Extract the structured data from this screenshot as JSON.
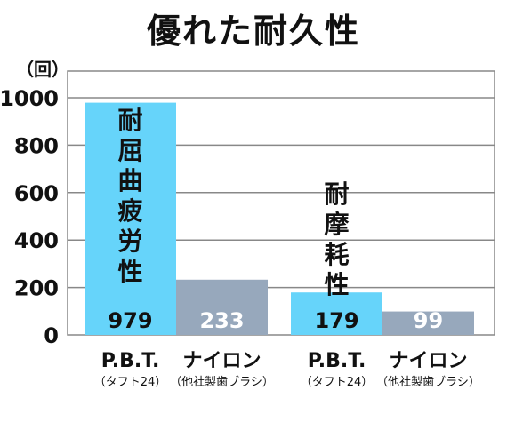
{
  "chart_data": {
    "type": "bar",
    "title": "優れた耐久性",
    "unit_label": "（回）",
    "ylim": [
      0,
      1000
    ],
    "yticks": [
      0,
      200,
      400,
      600,
      800,
      1000
    ],
    "grid": true,
    "groups": [
      {
        "annotation": [
          "耐",
          "屈",
          "曲",
          "疲",
          "労",
          "性"
        ],
        "bars": [
          {
            "label": "P.B.T.",
            "sublabel": "（タフト24）",
            "value": 979,
            "color": "#66d4fa"
          },
          {
            "label": "ナイロン",
            "sublabel": "（他社製歯ブラシ）",
            "value": 233,
            "color": "#97a8bc"
          }
        ]
      },
      {
        "annotation": [
          "耐",
          "摩",
          "耗",
          "性"
        ],
        "bars": [
          {
            "label": "P.B.T.",
            "sublabel": "（タフト24）",
            "value": 179,
            "color": "#66d4fa"
          },
          {
            "label": "ナイロン",
            "sublabel": "（他社製歯ブラシ）",
            "value": 99,
            "color": "#97a8bc"
          }
        ]
      }
    ]
  }
}
